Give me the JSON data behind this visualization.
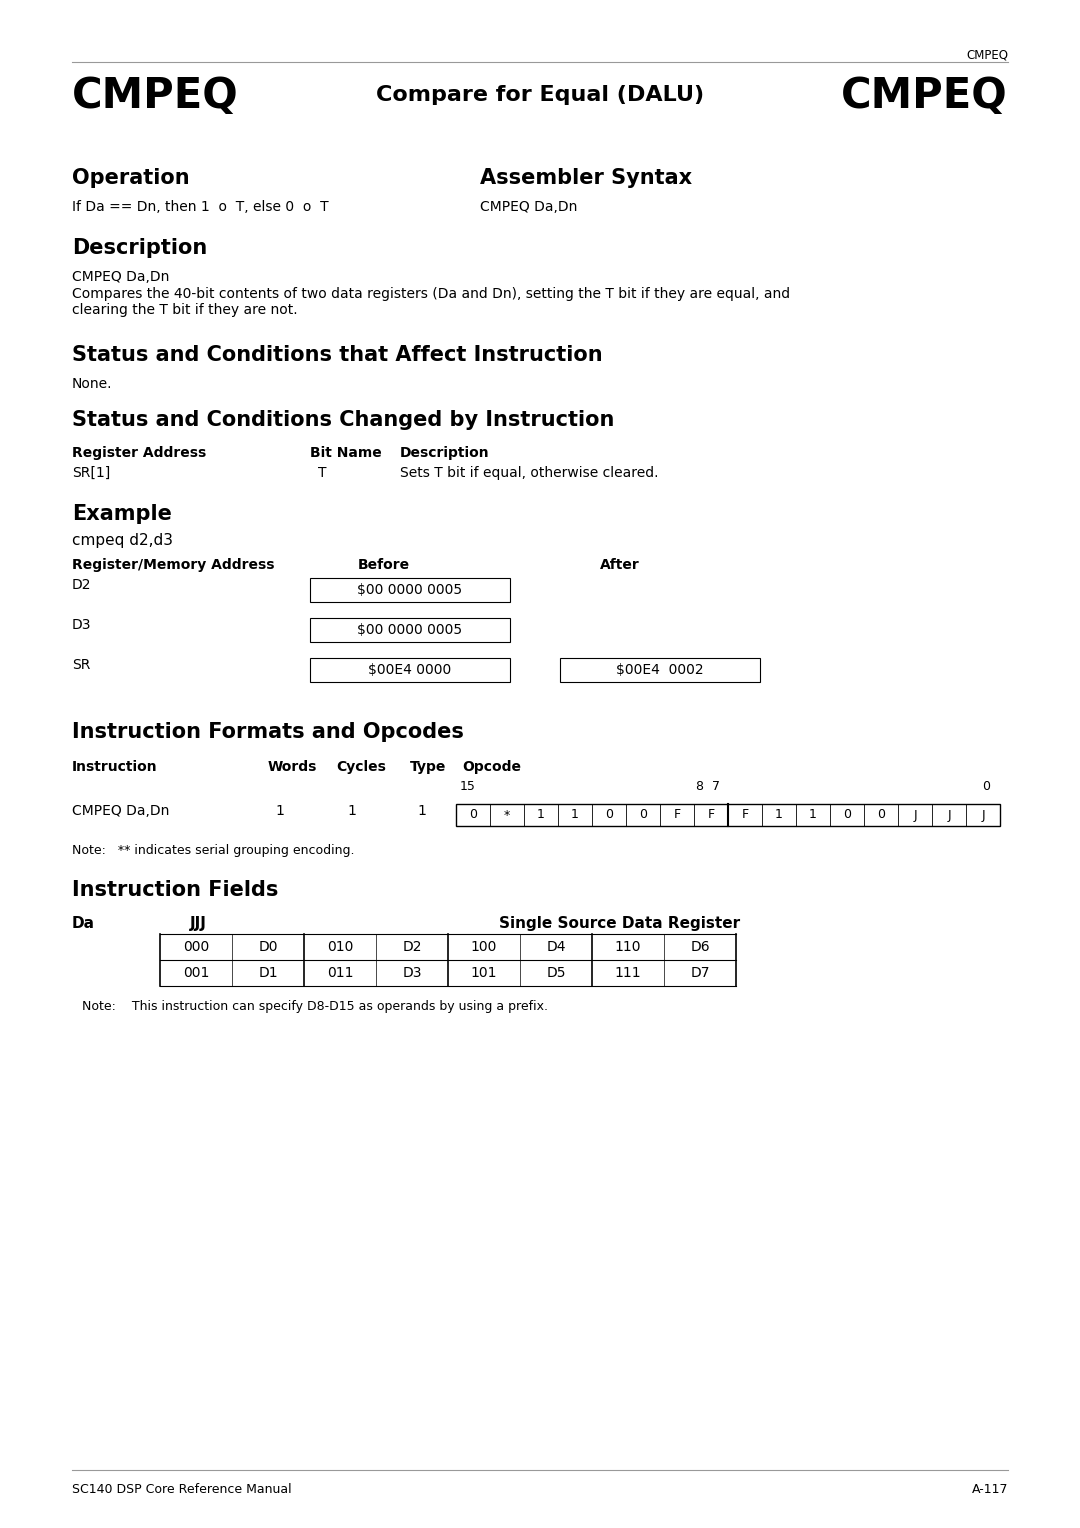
{
  "bg_color": "#ffffff",
  "header_tag": "CMPEQ",
  "title_left": "CMPEQ",
  "title_center": "Compare for Equal (DALU)",
  "title_right": "CMPEQ",
  "section_operation": "Operation",
  "section_assembler": "Assembler Syntax",
  "operation_text": "If Da == Dn, then 1  o  T, else 0  o  T",
  "assembler_text": "CMPEQ Da,Dn",
  "section_description": "Description",
  "desc_subtitle": "CMPEQ Da,Dn",
  "desc_body": "Compares the 40-bit contents of two data registers (Da and Dn), setting the T bit if they are equal, and\nclearing the T bit if they are not.",
  "section_status_affect": "Status and Conditions that Affect Instruction",
  "status_affect_text": "None.",
  "section_status_changed": "Status and Conditions Changed by Instruction",
  "table_header_reg": "Register Address",
  "table_header_bit": "Bit Name",
  "table_header_desc": "Description",
  "table_row_reg": "SR[1]",
  "table_row_bit": "T",
  "table_row_desc": "Sets T bit if equal, otherwise cleared.",
  "section_example": "Example",
  "example_cmd": "cmpeq d2,d3",
  "ex_col1": "Register/Memory Address",
  "ex_col2": "Before",
  "ex_col3": "After",
  "ex_d2_label": "D2",
  "ex_d2_before": "$00 0000 0005",
  "ex_d3_label": "D3",
  "ex_d3_before": "$00 0000 0005",
  "ex_sr_label": "SR",
  "ex_sr_before": "$00E4 0000",
  "ex_sr_after": "$00E4  0002",
  "section_formats": "Instruction Formats and Opcodes",
  "fmt_col1": "Instruction",
  "fmt_col2": "Words",
  "fmt_col3": "Cycles",
  "fmt_col4": "Type",
  "fmt_col5": "Opcode",
  "fmt_bits_high": "15",
  "fmt_bits_87": "8  7",
  "fmt_bits_low": "0",
  "fmt_instr": "CMPEQ Da,Dn",
  "fmt_words": "1",
  "fmt_cycles": "1",
  "fmt_type": "1",
  "fmt_opcode": [
    "0",
    "*",
    "1",
    "1",
    "0",
    "0",
    "F",
    "F",
    "F",
    "1",
    "1",
    "0",
    "0",
    "J",
    "J",
    "J"
  ],
  "fmt_note": "Note:   ** indicates serial grouping encoding.",
  "section_fields": "Instruction Fields",
  "fields_da": "Da",
  "fields_jjj": "JJJ",
  "fields_single_src": "Single Source Data Register",
  "fields_table": [
    [
      "000",
      "D0",
      "010",
      "D2",
      "100",
      "D4",
      "110",
      "D6"
    ],
    [
      "001",
      "D1",
      "011",
      "D3",
      "101",
      "D5",
      "111",
      "D7"
    ]
  ],
  "fields_note": "Note:    This instruction can specify D8-D15 as operands by using a prefix.",
  "footer_left": "SC140 DSP Core Reference Manual",
  "footer_right": "A-117"
}
